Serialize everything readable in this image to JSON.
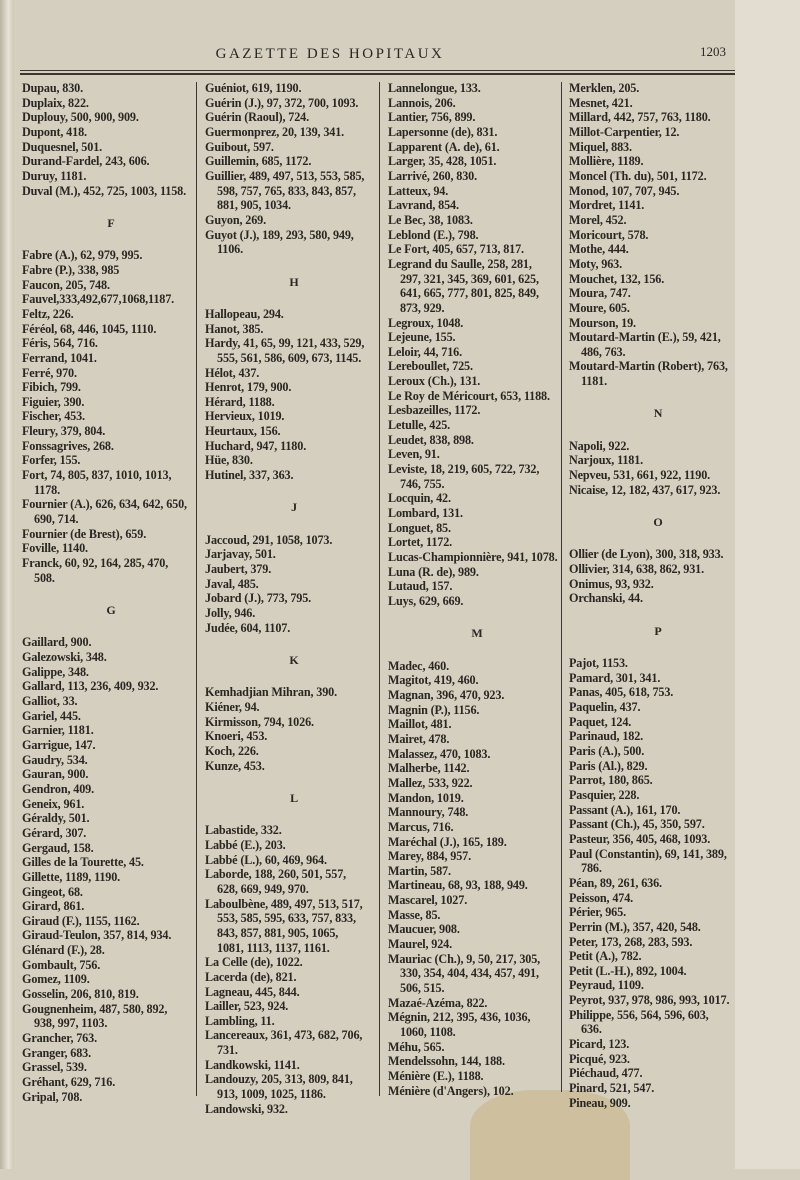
{
  "header": {
    "title": "GAZETTE DES HOPITAUX",
    "page_number": "1203"
  },
  "columns": [
    [
      [
        "Dupau, 830."
      ],
      [
        "Duplaix, 822."
      ],
      [
        "Duplouy, 500, 900, 909."
      ],
      [
        "Dupont, 418."
      ],
      [
        "Duquesnel, 501."
      ],
      [
        "Durand-Fardel, 243, 606."
      ],
      [
        "Duruy, 1181."
      ],
      [
        "Duval (M.), 452, 725, 1003, 1158."
      ],
      "F",
      [
        "Fabre (A.), 62, 979, 995."
      ],
      [
        "Fabre (P.), 338, 985"
      ],
      [
        "Faucon, 205, 748."
      ],
      [
        "Fauvel,333,492,677,1068,1187."
      ],
      [
        "Feltz, 226."
      ],
      [
        "Féréol, 68, 446, 1045, 1110."
      ],
      [
        "Féris, 564, 716."
      ],
      [
        "Ferrand, 1041."
      ],
      [
        "Ferré, 970."
      ],
      [
        "Fibich, 799."
      ],
      [
        "Figuier, 390."
      ],
      [
        "Fischer, 453."
      ],
      [
        "Fleury, 379, 804."
      ],
      [
        "Fonssagrives, 268."
      ],
      [
        "Forfer, 155."
      ],
      [
        "Fort, 74, 805, 837, 1010, 1013,",
        "1178."
      ],
      [
        "Fournier (A.), 626, 634, 642, 650,",
        "690, 714."
      ],
      [
        "Fournier (de Brest), 659."
      ],
      [
        "Foville, 1140."
      ],
      [
        "Franck, 60, 92, 164, 285, 470,",
        "508."
      ],
      "G",
      [
        "Gaillard, 900."
      ],
      [
        "Galezowski, 348."
      ],
      [
        "Galippe, 348."
      ],
      [
        "Gallard, 113, 236, 409, 932."
      ],
      [
        "Galliot, 33."
      ],
      [
        "Gariel, 445."
      ],
      [
        "Garnier, 1181."
      ],
      [
        "Garrigue, 147."
      ],
      [
        "Gaudry, 534."
      ],
      [
        "Gauran, 900."
      ],
      [
        "Gendron, 409."
      ],
      [
        "Geneix, 961."
      ],
      [
        "Géraldy, 501."
      ],
      [
        "Gérard, 307."
      ],
      [
        "Gergaud, 158."
      ],
      [
        "Gilles de la Tourette, 45."
      ],
      [
        "Gillette, 1189, 1190."
      ],
      [
        "Gingeot, 68."
      ],
      [
        "Girard, 861."
      ],
      [
        "Giraud (F.), 1155, 1162."
      ],
      [
        "Giraud-Teulon, 357, 814, 934."
      ],
      [
        "Glénard (F.), 28."
      ],
      [
        "Gombault, 756."
      ],
      [
        "Gomez, 1109."
      ],
      [
        "Gosselin, 206, 810, 819."
      ],
      [
        "Gougnenheim, 487, 580, 892,",
        "938, 997, 1103."
      ],
      [
        "Grancher, 763."
      ],
      [
        "Granger, 683."
      ],
      [
        "Grassel, 539."
      ],
      [
        "Gréhant, 629, 716."
      ],
      [
        "Gripal, 708."
      ]
    ],
    [
      [
        "Guéniot, 619, 1190."
      ],
      [
        "Guérin (J.), 97, 372, 700, 1093."
      ],
      [
        "Guérin (Raoul), 724."
      ],
      [
        "Guermonprez, 20, 139, 341."
      ],
      [
        "Guibout, 597."
      ],
      [
        "Guillemin, 685, 1172."
      ],
      [
        "Guillier, 489, 497, 513, 553, 585,",
        "598, 757, 765, 833, 843, 857,",
        "881, 905, 1034."
      ],
      [
        "Guyon, 269."
      ],
      [
        "Guyot (J.), 189, 293, 580, 949,",
        "1106."
      ],
      "H",
      [
        "Hallopeau, 294."
      ],
      [
        "Hanot, 385."
      ],
      [
        "Hardy, 41, 65, 99, 121, 433, 529,",
        "555, 561, 586, 609, 673, 1145."
      ],
      [
        "Hélot, 437."
      ],
      [
        "Henrot, 179, 900."
      ],
      [
        "Hérard, 1188."
      ],
      [
        "Hervieux, 1019."
      ],
      [
        "Heurtaux, 156."
      ],
      [
        "Huchard, 947, 1180."
      ],
      [
        "Hüe, 830."
      ],
      [
        "Hutinel, 337, 363."
      ],
      "J",
      [
        "Jaccoud, 291, 1058, 1073."
      ],
      [
        "Jarjavay, 501."
      ],
      [
        "Jaubert, 379."
      ],
      [
        "Javal, 485."
      ],
      [
        "Jobard (J.), 773, 795."
      ],
      [
        "Jolly, 946."
      ],
      [
        "Judée, 604, 1107."
      ],
      "K",
      [
        "Kemhadjian Mihran, 390."
      ],
      [
        "Kiéner, 94."
      ],
      [
        "Kirmisson, 794, 1026."
      ],
      [
        "Knoeri, 453."
      ],
      [
        "Koch, 226."
      ],
      [
        "Kunze, 453."
      ],
      "L",
      [
        "Labastide, 332."
      ],
      [
        "Labbé (E.), 203."
      ],
      [
        "Labbé (L.), 60, 469, 964."
      ],
      [
        "Laborde, 188, 260, 501, 557,",
        "628, 669, 949, 970."
      ],
      [
        "Laboulbène, 489, 497, 513, 517,",
        "553, 585, 595, 633, 757, 833,",
        "843, 857, 881, 905, 1065,",
        "1081, 1113, 1137, 1161."
      ],
      [
        "La Celle (de), 1022."
      ],
      [
        "Lacerda (de), 821."
      ],
      [
        "Lagneau, 445, 844."
      ],
      [
        "Lailler, 523, 924."
      ],
      [
        "Lambling, 11."
      ],
      [
        "Lancereaux, 361, 473, 682, 706,",
        "731."
      ],
      [
        "Landkowski, 1141."
      ],
      [
        "Landouzy, 205, 313, 809, 841,",
        "913, 1009, 1025, 1186."
      ],
      [
        "Landowski, 932."
      ]
    ],
    [
      [
        "Lannelongue, 133."
      ],
      [
        "Lannois, 206."
      ],
      [
        "Lantier, 756, 899."
      ],
      [
        "Lapersonne (de), 831."
      ],
      [
        "Lapparent (A. de), 61."
      ],
      [
        "Larger, 35, 428, 1051."
      ],
      [
        "Larrivé, 260, 830."
      ],
      [
        "Latteux, 94."
      ],
      [
        "Lavrand, 854."
      ],
      [
        "Le Bec, 38, 1083."
      ],
      [
        "Leblond (E.), 798."
      ],
      [
        "Le Fort, 405, 657, 713, 817."
      ],
      [
        "Legrand du Saulle, 258, 281,",
        "297, 321, 345, 369, 601, 625,",
        "641, 665, 777, 801, 825, 849,",
        "873, 929."
      ],
      [
        "Legroux, 1048."
      ],
      [
        "Lejeune, 155."
      ],
      [
        "Leloir, 44, 716."
      ],
      [
        "Lereboullet, 725."
      ],
      [
        "Leroux (Ch.), 131."
      ],
      [
        "Le Roy de Méricourt, 653, 1188."
      ],
      [
        "Lesbazeilles, 1172."
      ],
      [
        "Letulle, 425."
      ],
      [
        "Leudet, 838, 898."
      ],
      [
        "Leven, 91."
      ],
      [
        "Leviste, 18, 219, 605, 722, 732,",
        "746, 755."
      ],
      [
        "Locquin, 42."
      ],
      [
        "Lombard, 131."
      ],
      [
        "Longuet, 85."
      ],
      [
        "Lortet, 1172."
      ],
      [
        "Lucas-Championnière, 941, 1078."
      ],
      [
        "Luna (R. de), 989."
      ],
      [
        "Lutaud, 157."
      ],
      [
        "Luys, 629, 669."
      ],
      "M",
      [
        "Madec, 460."
      ],
      [
        "Magitot, 419, 460."
      ],
      [
        "Magnan, 396, 470, 923."
      ],
      [
        "Magnin (P.), 1156."
      ],
      [
        "Maillot, 481."
      ],
      [
        "Mairet, 478."
      ],
      [
        "Malassez, 470, 1083."
      ],
      [
        "Malherbe, 1142."
      ],
      [
        "Mallez, 533, 922."
      ],
      [
        "Mandon, 1019."
      ],
      [
        "Mannoury, 748."
      ],
      [
        "Marcus, 716."
      ],
      [
        "Maréchal (J.), 165, 189."
      ],
      [
        "Marey, 884, 957."
      ],
      [
        "Martin, 587."
      ],
      [
        "Martineau, 68, 93, 188, 949."
      ],
      [
        "Mascarel, 1027."
      ],
      [
        "Masse, 85."
      ],
      [
        "Maucuer, 908."
      ],
      [
        "Maurel, 924."
      ],
      [
        "Mauriac (Ch.), 9, 50, 217, 305,",
        "330, 354, 404, 434, 457, 491,",
        "506, 515."
      ],
      [
        "Mazaé-Azéma, 822."
      ],
      [
        "Mégnin, 212, 395, 436, 1036,",
        "1060, 1108."
      ],
      [
        "Méhu, 565."
      ],
      [
        "Mendelssohn, 144, 188."
      ],
      [
        "Ménière (E.), 1188."
      ],
      [
        "Ménière (d'Angers), 102."
      ]
    ],
    [
      [
        "Merklen, 205."
      ],
      [
        "Mesnet, 421."
      ],
      [
        "Millard, 442, 757, 763, 1180."
      ],
      [
        "Millot-Carpentier, 12."
      ],
      [
        "Miquel, 883."
      ],
      [
        "Mollière, 1189."
      ],
      [
        "Moncel (Th. du), 501, 1172."
      ],
      [
        "Monod, 107, 707, 945."
      ],
      [
        "Mordret, 1141."
      ],
      [
        "Morel, 452."
      ],
      [
        "Moricourt, 578."
      ],
      [
        "Mothe, 444."
      ],
      [
        "Moty, 963."
      ],
      [
        "Mouchet, 132, 156."
      ],
      [
        "Moura, 747."
      ],
      [
        "Moure, 605."
      ],
      [
        "Mourson, 19."
      ],
      [
        "Moutard-Martin (E.), 59, 421,",
        "486, 763."
      ],
      [
        "Moutard-Martin (Robert), 763,",
        "1181."
      ],
      "N",
      [
        "Napoli, 922."
      ],
      [
        "Narjoux, 1181."
      ],
      [
        "Nepveu, 531, 661, 922, 1190."
      ],
      [
        "Nicaise, 12, 182, 437, 617, 923."
      ],
      "O",
      [
        "Ollier (de Lyon), 300, 318, 933."
      ],
      [
        "Ollivier, 314, 638, 862, 931."
      ],
      [
        "Onimus, 93, 932."
      ],
      [
        "Orchanski, 44."
      ],
      "P",
      [
        "Pajot, 1153."
      ],
      [
        "Pamard, 301, 341."
      ],
      [
        "Panas, 405, 618, 753."
      ],
      [
        "Paquelin, 437."
      ],
      [
        "Paquet, 124."
      ],
      [
        "Parinaud, 182."
      ],
      [
        "Paris (A.), 500."
      ],
      [
        "Paris (Al.), 829."
      ],
      [
        "Parrot, 180, 865."
      ],
      [
        "Pasquier, 228."
      ],
      [
        "Passant (A.), 161, 170."
      ],
      [
        "Passant (Ch.), 45, 350, 597."
      ],
      [
        "Pasteur, 356, 405, 468, 1093."
      ],
      [
        "Paul (Constantin), 69, 141, 389,",
        "786."
      ],
      [
        "Péan, 89, 261, 636."
      ],
      [
        "Peisson, 474."
      ],
      [
        "Périer, 965."
      ],
      [
        "Perrin (M.), 357, 420, 548."
      ],
      [
        "Peter, 173, 268, 283, 593."
      ],
      [
        "Petit (A.), 782."
      ],
      [
        "Petit (L.-H.), 892, 1004."
      ],
      [
        "Peyraud, 1109."
      ],
      [
        "Peyrot, 937, 978, 986, 993, 1017."
      ],
      [
        "Philippe, 556, 564, 596, 603,",
        "636."
      ],
      [
        "Picard, 123."
      ],
      [
        "Picqué, 923."
      ],
      [
        "Piéchaud, 477."
      ],
      [
        "Pinard, 521, 547."
      ],
      [
        "Pineau, 909."
      ]
    ]
  ]
}
